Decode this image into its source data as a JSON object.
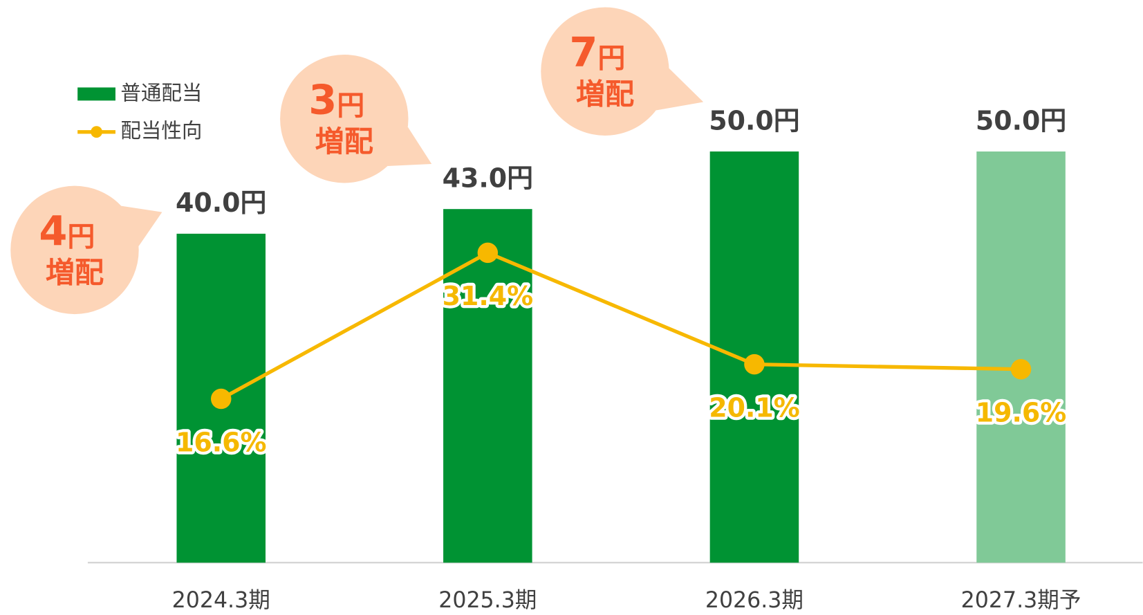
{
  "chart_data": {
    "type": "bar+line",
    "categories": [
      "2024.3期",
      "2025.3期",
      "2026.3期",
      "2027.3期予"
    ],
    "ylim": [
      0,
      60
    ],
    "y2lim": [
      0,
      50
    ],
    "series": [
      {
        "name": "普通配当",
        "type": "bar",
        "color": "#009333",
        "colors": [
          "#009333",
          "#009333",
          "#009333",
          "#80c997"
        ],
        "values": [
          40,
          43,
          50,
          50
        ],
        "value_labels": [
          "40.0円",
          "43.0円",
          "50.0円",
          "50.0円"
        ]
      },
      {
        "name": "配当性向",
        "type": "line",
        "axis": "y2",
        "color": "#f7b800",
        "values": [
          16.6,
          31.4,
          20.1,
          19.6
        ],
        "value_labels": [
          "16.6%",
          "31.4%",
          "20.1%",
          "19.6%"
        ]
      }
    ],
    "annotations": [
      {
        "amount": "4",
        "unit": "円",
        "text": "増配"
      },
      {
        "amount": "3",
        "unit": "円",
        "text": "増配"
      },
      {
        "amount": "7",
        "unit": "円",
        "text": "増配"
      }
    ]
  }
}
